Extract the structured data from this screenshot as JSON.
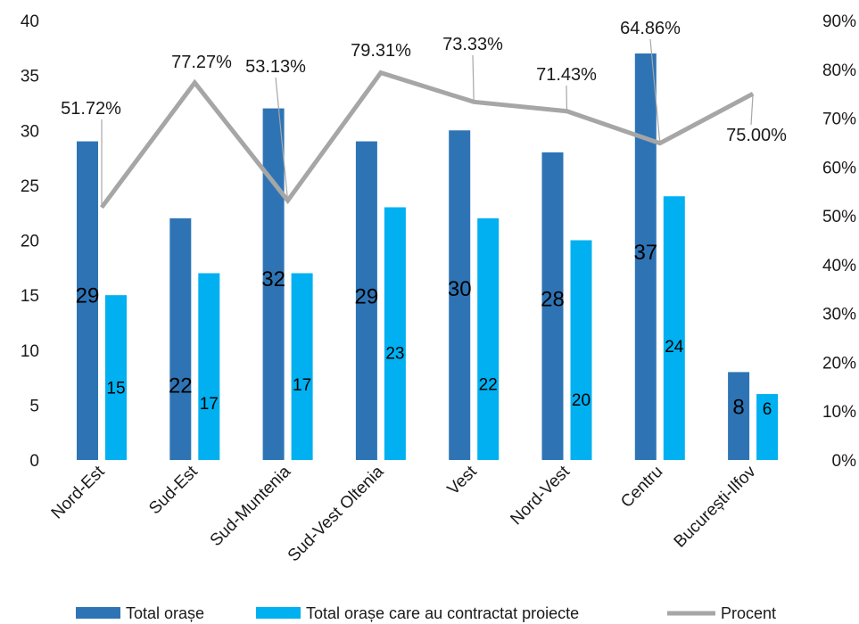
{
  "chart_data": {
    "type": "bar",
    "categories": [
      "Nord-Est",
      "Sud-Est",
      "Sud-Muntenia",
      "Sud-Vest Oltenia",
      "Vest",
      "Nord-Vest",
      "Centru",
      "București-Ilfov"
    ],
    "series": [
      {
        "name": "Total orașe",
        "values": [
          29,
          22,
          32,
          29,
          30,
          28,
          37,
          8
        ],
        "color": "#2E74B5",
        "axis": "left"
      },
      {
        "name": "Total orașe care au contractat proiecte",
        "values": [
          15,
          17,
          17,
          23,
          22,
          20,
          24,
          6
        ],
        "color": "#00B0F0",
        "axis": "left"
      }
    ],
    "line_series": {
      "name": "Procent",
      "values": [
        0.5172,
        0.7727,
        0.5313,
        0.7931,
        0.7333,
        0.7143,
        0.6486,
        0.75
      ],
      "labels": [
        "51.72%",
        "77.27%",
        "53.13%",
        "79.31%",
        "73.33%",
        "71.43%",
        "64.86%",
        "75.00%"
      ],
      "color": "#A6A6A6",
      "axis": "right"
    },
    "y_left": {
      "min": 0,
      "max": 40,
      "ticks": [
        0,
        5,
        10,
        15,
        20,
        25,
        30,
        35,
        40
      ]
    },
    "y_right": {
      "min": 0,
      "max": 0.9,
      "ticks": [
        "0%",
        "10%",
        "20%",
        "30%",
        "40%",
        "50%",
        "60%",
        "70%",
        "80%",
        "90%"
      ]
    },
    "grid": false,
    "legend": "bottom"
  }
}
